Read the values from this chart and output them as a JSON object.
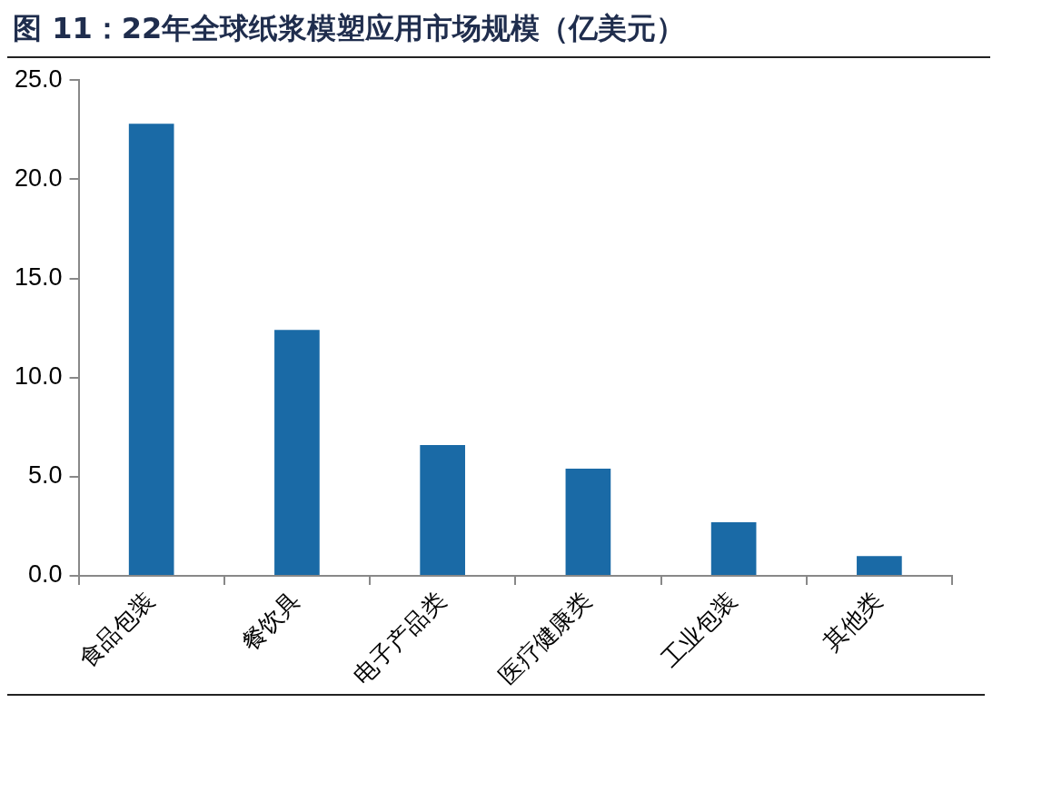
{
  "chart_data": {
    "type": "bar",
    "title": "图 11：22年全球纸浆模塑应用市场规模（亿美元）",
    "categories": [
      "食品包装",
      "餐饮具",
      "电子产品类",
      "医疗健康类",
      "工业包装",
      "其他类"
    ],
    "values": [
      22.8,
      12.4,
      6.6,
      5.4,
      2.7,
      1.0
    ],
    "color": "#1a6aa6",
    "ylim": [
      0,
      25
    ],
    "yticks": [
      {
        "value": 0,
        "label": "0.0"
      },
      {
        "value": 5,
        "label": "5.0"
      },
      {
        "value": 10,
        "label": "10.0"
      },
      {
        "value": 15,
        "label": "15.0"
      },
      {
        "value": 20,
        "label": "20.0"
      },
      {
        "value": 25,
        "label": "25.0"
      }
    ],
    "grid": false,
    "legend": false
  }
}
